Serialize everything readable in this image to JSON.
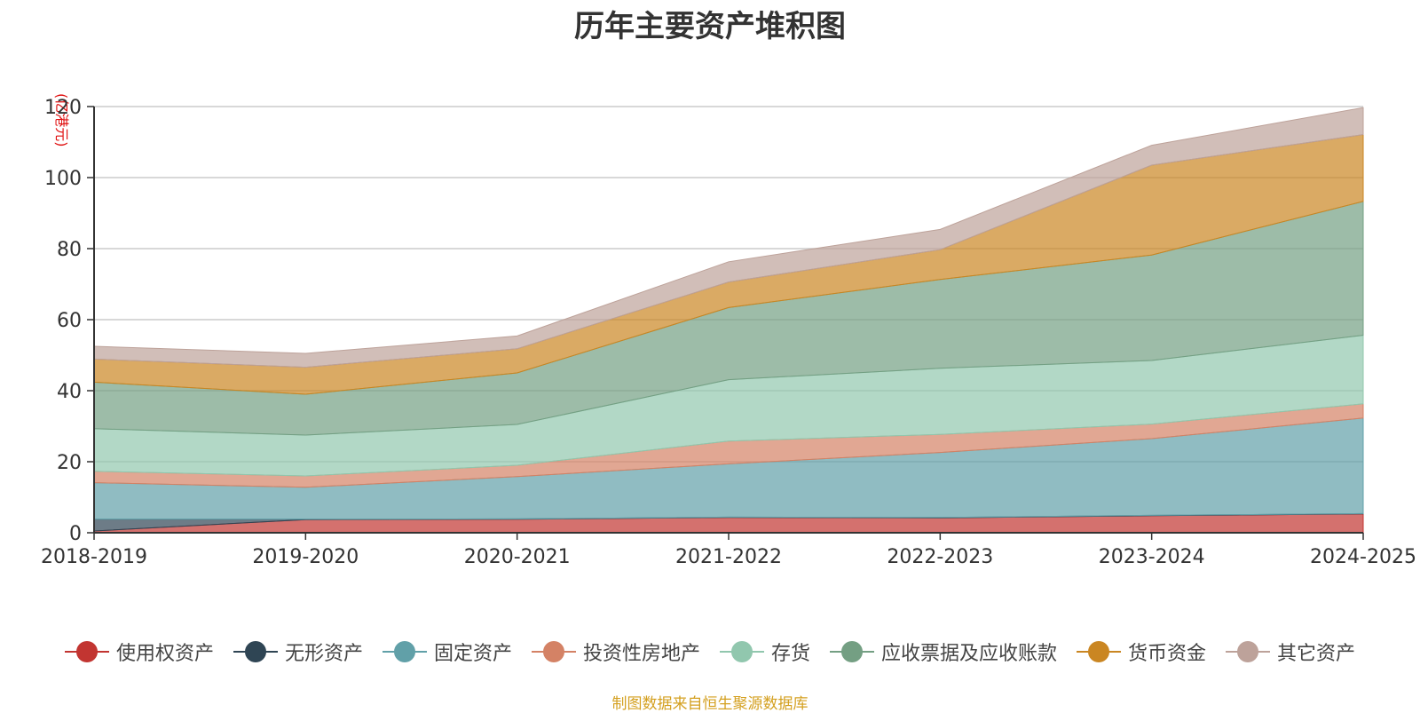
{
  "chart_data": {
    "type": "area",
    "stacked": true,
    "title": "历年主要资产堆积图",
    "unit_label": "(亿港元)",
    "categories": [
      "2018-2019",
      "2019-2020",
      "2020-2021",
      "2021-2022",
      "2022-2023",
      "2023-2024",
      "2024-2025"
    ],
    "ylim": [
      0,
      120
    ],
    "yticks": [
      0,
      20,
      40,
      60,
      80,
      100,
      120
    ],
    "grid": true,
    "legend_position": "bottom",
    "series": [
      {
        "name": "使用权资产",
        "color": "#c23531",
        "values": [
          0.5,
          3.7,
          3.8,
          4.3,
          4.2,
          4.8,
          5.3
        ]
      },
      {
        "name": "无形资产",
        "color": "#2f4554",
        "values": [
          3.3,
          0.1,
          0.1,
          0.1,
          0.1,
          0.1,
          0.1
        ]
      },
      {
        "name": "固定资产",
        "color": "#61a0a8",
        "values": [
          10.3,
          9.0,
          11.9,
          15.0,
          18.3,
          21.6,
          26.9
        ]
      },
      {
        "name": "投资性房地产",
        "color": "#d48265",
        "values": [
          3.2,
          3.2,
          3.2,
          6.4,
          5.1,
          4.1,
          4.0
        ]
      },
      {
        "name": "存货",
        "color": "#91c7ae",
        "values": [
          12.0,
          11.5,
          11.5,
          17.3,
          18.6,
          17.9,
          19.3
        ]
      },
      {
        "name": "应收票据及应收账款",
        "color": "#749f83",
        "values": [
          13.1,
          11.5,
          14.5,
          20.3,
          25.0,
          29.7,
          37.7
        ]
      },
      {
        "name": "货币资金",
        "color": "#ca8622",
        "values": [
          6.5,
          7.6,
          6.8,
          7.2,
          8.4,
          25.3,
          18.8
        ]
      },
      {
        "name": "其它资产",
        "color": "#bda29a",
        "values": [
          3.6,
          3.9,
          3.6,
          5.7,
          5.7,
          5.6,
          7.6
        ]
      }
    ]
  },
  "footer_note": "制图数据来自恒生聚源数据库"
}
